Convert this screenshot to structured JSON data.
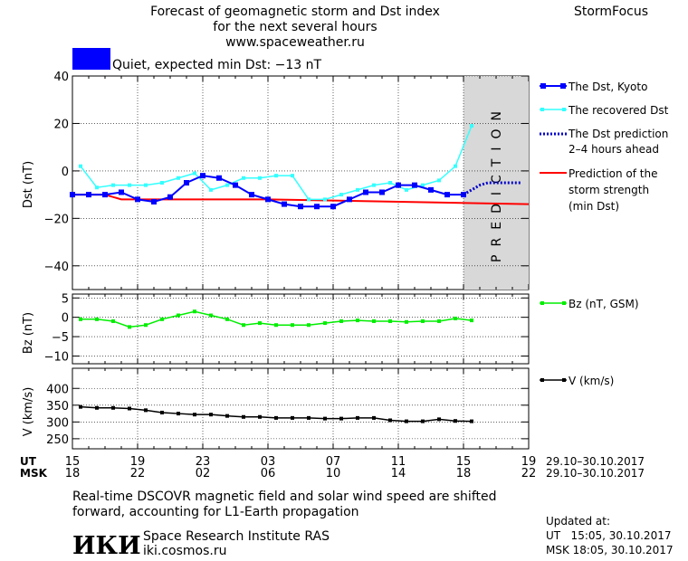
{
  "header": {
    "title_lines": [
      "Forecast of geomagnetic storm and Dst index",
      "for the next several hours",
      "www.spaceweather.ru"
    ],
    "brand": "StormFocus",
    "status_text": "Quiet, expected min Dst: −13 nT",
    "status_color": "#0000ff"
  },
  "colors": {
    "dst_kyoto": "#0000ff",
    "dst_recovered": "#33ffff",
    "dst_prediction": "#0000cc",
    "storm_strength": "#ff0000",
    "bz": "#00ee00",
    "v": "#000000",
    "prediction_band": "#d8d8d8"
  },
  "prediction_band_label": "PREDICTION",
  "legend": {
    "dst_kyoto": "The Dst, Kyoto",
    "dst_recovered": "The recovered Dst",
    "dst_prediction": [
      "The Dst prediction",
      "2–4 hours ahead"
    ],
    "storm_strength": [
      "Prediction of the",
      "storm strength",
      "(min Dst)"
    ],
    "bz": "Bz (nT, GSM)",
    "v": "V (km/s)"
  },
  "time_axis": {
    "ut_label": "UT",
    "msk_label": "MSK",
    "ut_ticks": [
      "15",
      "19",
      "23",
      "03",
      "07",
      "11",
      "15",
      "19"
    ],
    "msk_ticks": [
      "18",
      "22",
      "02",
      "06",
      "10",
      "14",
      "18",
      "22"
    ],
    "ut_range": "29.10–30.10.2017",
    "msk_range": "29.10–30.10.2017"
  },
  "chart_data": [
    {
      "type": "line",
      "ylabel": "Dst (nT)",
      "ylim": [
        -50,
        40
      ],
      "yticks": [
        40,
        20,
        0,
        -20,
        -40
      ],
      "x_hours": [
        0,
        28
      ],
      "prediction_band_hours": [
        24,
        28
      ],
      "series": [
        {
          "name": "The Dst, Kyoto",
          "x": [
            0,
            1,
            2,
            3,
            4,
            5,
            6,
            7,
            8,
            9,
            10,
            11,
            12,
            13,
            14,
            15,
            16,
            17,
            18,
            19,
            20,
            21,
            22,
            23,
            24
          ],
          "values": [
            -10,
            -10,
            -10,
            -9,
            -12,
            -13,
            -11,
            -5,
            -2,
            -3,
            -6,
            -10,
            -12,
            -14,
            -15,
            -15,
            -15,
            -12,
            -9,
            -9,
            -6,
            -6,
            -8,
            -10,
            -10
          ]
        },
        {
          "name": "The recovered Dst",
          "x": [
            0.5,
            1.5,
            2.5,
            3.5,
            4.5,
            5.5,
            6.5,
            7.5,
            8.5,
            9.5,
            10.5,
            11.5,
            12.5,
            13.5,
            14.5,
            15.5,
            16.5,
            17.5,
            18.5,
            19.5,
            20.5,
            21.5,
            22.5,
            23.5,
            24.5
          ],
          "values": [
            2,
            -7,
            -6,
            -6,
            -6,
            -5,
            -3,
            -1,
            -8,
            -6,
            -3,
            -3,
            -2,
            -2,
            -12,
            -12,
            -10,
            -8,
            -6,
            -5,
            -8,
            -6,
            -4,
            2,
            19
          ]
        },
        {
          "name": "The Dst prediction 2–4 hours ahead",
          "x": [
            24,
            24.5,
            25,
            25.5,
            26,
            26.5,
            27,
            27.5
          ],
          "values": [
            -10,
            -8,
            -6,
            -5,
            -5,
            -5,
            -5,
            -5
          ]
        },
        {
          "name": "Prediction of the storm strength (min Dst)",
          "x": [
            0,
            2,
            3,
            12,
            28
          ],
          "values": [
            -10,
            -10,
            -12,
            -12,
            -14
          ]
        }
      ]
    },
    {
      "type": "line",
      "ylabel": "Bz (nT)",
      "ylim": [
        -12,
        6
      ],
      "yticks": [
        5,
        0,
        -5,
        -10
      ],
      "x_hours": [
        0,
        28
      ],
      "series": [
        {
          "name": "Bz (nT, GSM)",
          "x": [
            0.5,
            1.5,
            2.5,
            3.5,
            4.5,
            5.5,
            6.5,
            7.5,
            8.5,
            9.5,
            10.5,
            11.5,
            12.5,
            13.5,
            14.5,
            15.5,
            16.5,
            17.5,
            18.5,
            19.5,
            20.5,
            21.5,
            22.5,
            23.5,
            24.5
          ],
          "values": [
            -0.5,
            -0.5,
            -1,
            -2.5,
            -2,
            -0.5,
            0.5,
            1.5,
            0.5,
            -0.5,
            -2,
            -1.5,
            -2,
            -2,
            -2,
            -1.5,
            -1,
            -0.8,
            -1,
            -1,
            -1.2,
            -1,
            -1,
            -0.3,
            -0.8
          ]
        }
      ]
    },
    {
      "type": "line",
      "ylabel": "V (km/s)",
      "ylim": [
        220,
        460
      ],
      "yticks": [
        400,
        350,
        300,
        250
      ],
      "x_hours": [
        0,
        28
      ],
      "series": [
        {
          "name": "V (km/s)",
          "x": [
            0.5,
            1.5,
            2.5,
            3.5,
            4.5,
            5.5,
            6.5,
            7.5,
            8.5,
            9.5,
            10.5,
            11.5,
            12.5,
            13.5,
            14.5,
            15.5,
            16.5,
            17.5,
            18.5,
            19.5,
            20.5,
            21.5,
            22.5,
            23.5,
            24.5
          ],
          "values": [
            345,
            342,
            342,
            340,
            335,
            328,
            325,
            322,
            322,
            318,
            315,
            315,
            312,
            312,
            312,
            310,
            310,
            312,
            312,
            305,
            302,
            302,
            308,
            303,
            302
          ]
        }
      ]
    }
  ],
  "footer": {
    "note_lines": [
      "Real-time DSCOVR magnetic field and solar wind speed are shifted",
      "forward, accounting for L1-Earth propagation"
    ],
    "logo": "ИКИ",
    "institute": "Space Research Institute RAS",
    "site": "iki.cosmos.ru",
    "updated_label": "Updated at:",
    "updated_ut": "UT   15:05, 30.10.2017",
    "updated_msk": "MSK 18:05, 30.10.2017"
  }
}
